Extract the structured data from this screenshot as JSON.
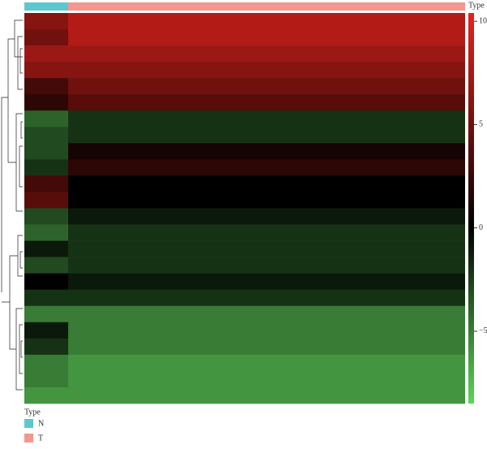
{
  "chart_data": {
    "type": "heatmap",
    "annotation_label": "Type",
    "legend_title": "Type",
    "series": [
      {
        "name": "N",
        "color": "#5bc8cf",
        "values": [
          6,
          5,
          7,
          6,
          3,
          2,
          -4,
          -3,
          -3,
          -2,
          3,
          4,
          -3,
          -4,
          -1,
          -3,
          0,
          -2,
          -5,
          -1,
          -2,
          -5,
          -5,
          -6
        ]
      },
      {
        "name": "T",
        "color": "#f4978e",
        "values": [
          8,
          8,
          7,
          6,
          5,
          4,
          -2,
          -2,
          1,
          2,
          0,
          0,
          -1,
          -2,
          -2,
          -2,
          -1,
          -2,
          -5,
          -5,
          -5,
          -6,
          -6,
          -6
        ]
      }
    ],
    "colors": [
      "#5fd35a",
      "#000000",
      "#e8231d"
    ],
    "clim": [
      -8.5,
      10.4
    ],
    "cticks": [
      10,
      5,
      0,
      {
        "value": -5,
        "label": "−5"
      }
    ]
  }
}
